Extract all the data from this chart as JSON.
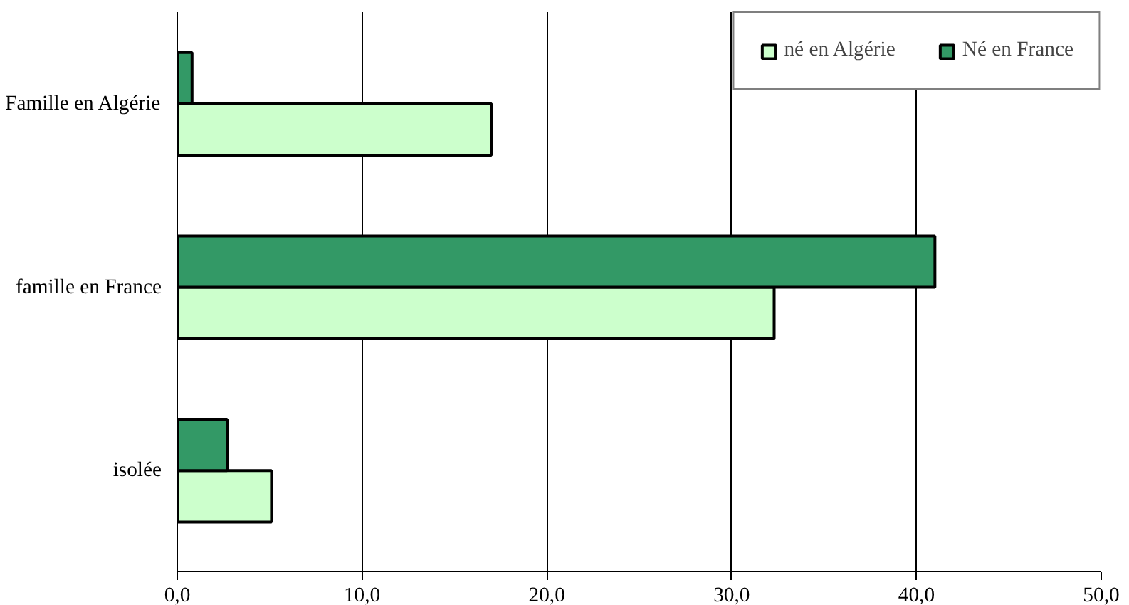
{
  "chart_data": {
    "type": "bar",
    "orientation": "horizontal",
    "categories": [
      "Famille en Algérie",
      "famille en France",
      "isolée"
    ],
    "series": [
      {
        "name": "né en Algérie",
        "color": "#ccffcc",
        "values": [
          17.0,
          32.3,
          5.1
        ]
      },
      {
        "name": "Né en France",
        "color": "#339966",
        "values": [
          0.8,
          41.0,
          2.7
        ]
      }
    ],
    "xlim": [
      0,
      50
    ],
    "xticks": [
      {
        "value": 0,
        "label": "0,0"
      },
      {
        "value": 10,
        "label": "10,0"
      },
      {
        "value": 20,
        "label": "20,0"
      },
      {
        "value": 30,
        "label": "30,0"
      },
      {
        "value": 40,
        "label": "40,0"
      },
      {
        "value": 50,
        "label": "50,0"
      }
    ],
    "grid": "x",
    "legend": "top right"
  }
}
